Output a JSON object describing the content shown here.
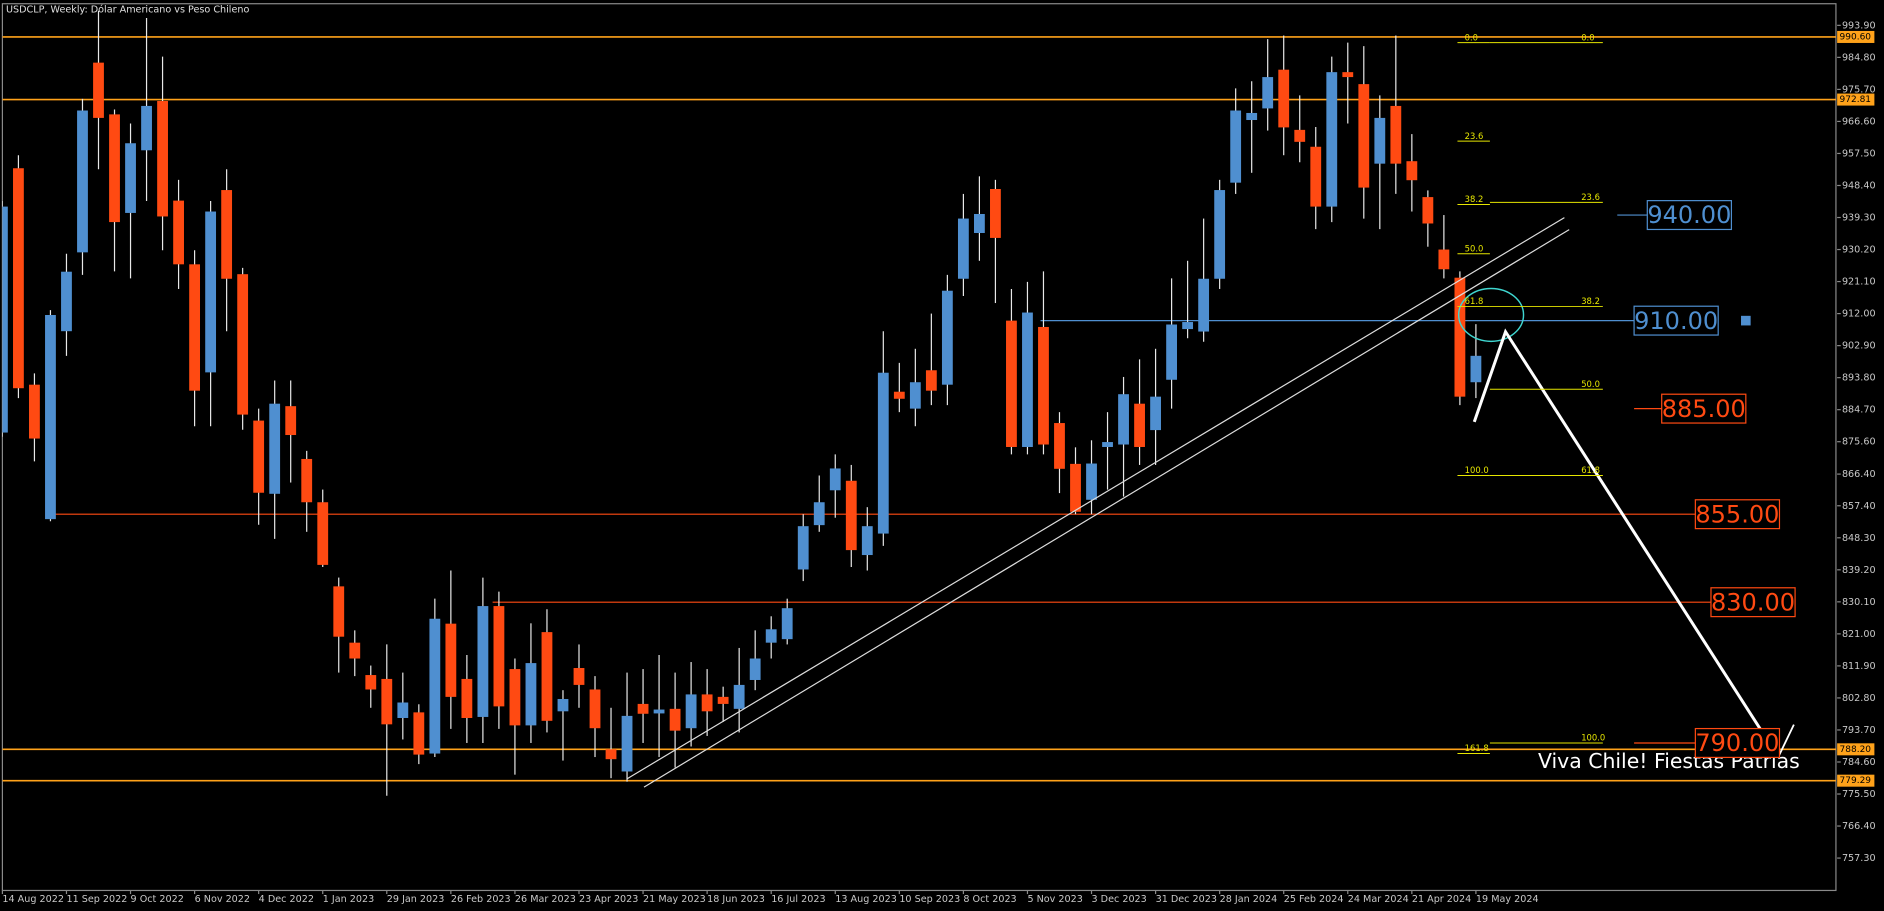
{
  "chart_data": {
    "type": "candlestick",
    "title": "USDCLP, Weekly:  Dólar Americano vs Peso Chileno",
    "categories": [
      "14 Aug 2022",
      null,
      null,
      null,
      "11 Sep 2022",
      null,
      null,
      null,
      "9 Oct 2022",
      null,
      null,
      null,
      "6 Nov 2022",
      null,
      null,
      null,
      "4 Dec 2022",
      null,
      null,
      null,
      "1 Jan 2023",
      null,
      null,
      null,
      "29 Jan 2023",
      null,
      null,
      null,
      "26 Feb 2023",
      null,
      null,
      null,
      "26 Mar 2023",
      null,
      null,
      null,
      "23 Apr 2023",
      null,
      null,
      null,
      "21 May 2023",
      null,
      null,
      null,
      "18 Jun 2023",
      null,
      null,
      null,
      "16 Jul 2023",
      null,
      null,
      null,
      "13 Aug 2023",
      null,
      null,
      null,
      "10 Sep 2023",
      null,
      null,
      null,
      "8 Oct 2023",
      null,
      null,
      null,
      "5 Nov 2023",
      null,
      null,
      null,
      "3 Dec 2023",
      null,
      null,
      null,
      "31 Dec 2023",
      null,
      null,
      null,
      "28 Jan 2024",
      null,
      null,
      null,
      "25 Feb 2024",
      null,
      null,
      null,
      "24 Mar 2024",
      null,
      null,
      null,
      "21 Apr 2024",
      null,
      null,
      null,
      "19 May 2024"
    ],
    "open": [
      878.2,
      953.3,
      891.8,
      853.6,
      907,
      929.4,
      983.3,
      968.6,
      940.6,
      958.4,
      972.4,
      944.1,
      926,
      895.3,
      947.1,
      923.2,
      881.6,
      860.8,
      885.7,
      870.7,
      858.4,
      834.5,
      818.5,
      809.3,
      808.2,
      797.1,
      798.7,
      787,
      823.9,
      808.2,
      797.4,
      828.9,
      811,
      795,
      821.5,
      799,
      811.3,
      805.2,
      788.2,
      781.9,
      801.1,
      798.4,
      799.7,
      794.2,
      803.8,
      803.1,
      799.7,
      807.9,
      818.5,
      819.5,
      839.3,
      851.9,
      861.8,
      864.5,
      843.4,
      849.5,
      889.8,
      885,
      895.9,
      891.8,
      921.9,
      934.9,
      947.4,
      910,
      874.1,
      908.2,
      880.9,
      869.3,
      859.1,
      874.1,
      874.8,
      886.4,
      878.9,
      893.2,
      907.6,
      906.9,
      921.9,
      949.2,
      967,
      970.3,
      981.3,
      964.2,
      959.4,
      942.4,
      980.6,
      977.2,
      954.6,
      971,
      955.3,
      945.1,
      930.2,
      922.2,
      892.5
    ],
    "high": [
      944,
      957,
      895,
      913,
      929,
      973,
      998,
      970,
      966,
      996,
      985,
      950,
      930,
      944,
      953,
      925,
      885,
      893,
      893,
      873,
      862,
      837,
      822,
      812,
      818,
      810,
      801,
      831,
      839,
      815,
      837,
      833,
      814,
      824,
      828,
      805,
      818,
      809,
      800,
      810,
      811,
      815,
      810,
      813,
      811,
      806,
      817,
      822,
      826,
      831,
      855,
      866,
      872,
      869,
      857,
      907,
      898,
      902,
      912,
      923,
      946,
      951,
      950,
      919,
      921,
      924,
      884,
      874,
      876,
      884,
      894,
      899,
      902,
      922,
      927,
      939,
      950,
      976,
      978,
      990,
      991,
      974,
      965,
      985,
      989,
      988,
      974,
      991,
      963,
      947,
      940,
      924,
      909
    ],
    "low": [
      877,
      888,
      870,
      853,
      900,
      923,
      953,
      924,
      922,
      944,
      930,
      919,
      880,
      880,
      907,
      879,
      852,
      848,
      864,
      850,
      840,
      810,
      809,
      800,
      775,
      791,
      784,
      786,
      794,
      790,
      790,
      794,
      781,
      790,
      793,
      785,
      800,
      786,
      780,
      779,
      790,
      786,
      783,
      789,
      792,
      796,
      793,
      805,
      814,
      818,
      836,
      850,
      854,
      840,
      839,
      846,
      884,
      880,
      886,
      886,
      917,
      927,
      915,
      872,
      872,
      872,
      861,
      855,
      855,
      862,
      860,
      869,
      869,
      885,
      905,
      904,
      919,
      946,
      952,
      964,
      957,
      955,
      936,
      938,
      966,
      939,
      936,
      946,
      941,
      931,
      922,
      886,
      888
    ],
    "close": [
      942.4,
      890.8,
      876.5,
      911.6,
      923.9,
      969.7,
      967.6,
      938,
      960.4,
      971,
      939.6,
      926,
      890.1,
      941,
      921.9,
      883.3,
      861.1,
      886.4,
      877.5,
      858.4,
      840.6,
      820.2,
      814,
      805.2,
      795.3,
      801.5,
      786.7,
      825.3,
      803.1,
      797.1,
      828.9,
      800.4,
      795,
      812.7,
      796.3,
      802.5,
      806.5,
      794.2,
      785.4,
      797.7,
      798.3,
      799.5,
      793.5,
      803.8,
      799,
      801.1,
      806.5,
      814,
      822.3,
      828.3,
      851.6,
      858.4,
      868,
      844.8,
      851.6,
      895.2,
      887.8,
      892.5,
      890.1,
      918.5,
      939,
      940.3,
      933.5,
      874.1,
      912.3,
      874.8,
      867.9,
      855.7,
      869.4,
      875.5,
      889.1,
      874.1,
      888.4,
      908.9,
      909.6,
      921.9,
      947.1,
      969.7,
      969,
      979.2,
      964.9,
      960.8,
      942.4,
      980.6,
      979.2,
      947.8,
      967.6,
      954.6,
      949.9,
      937.6,
      924.6,
      888.4,
      900
    ],
    "up_color": "#4f8fd0",
    "down_color": "#ff4a12",
    "wick_color": "#e8e8e8",
    "ylim": [
      748.1,
      999.7
    ],
    "yticks": [
      {
        "value": 993.9,
        "label": "993.90"
      },
      {
        "value": 984.8,
        "label": "984.80"
      },
      {
        "value": 975.7,
        "label": "975.70"
      },
      {
        "value": 966.6,
        "label": "966.60"
      },
      {
        "value": 957.5,
        "label": "957.50"
      },
      {
        "value": 948.4,
        "label": "948.40"
      },
      {
        "value": 939.3,
        "label": "939.30"
      },
      {
        "value": 930.2,
        "label": "930.20"
      },
      {
        "value": 921.1,
        "label": "921.10"
      },
      {
        "value": 912,
        "label": "912.00"
      },
      {
        "value": 902.9,
        "label": "902.90"
      },
      {
        "value": 893.8,
        "label": "893.80"
      },
      {
        "value": 884.7,
        "label": "884.70"
      },
      {
        "value": 875.6,
        "label": "875.60"
      },
      {
        "value": 866.4,
        "label": "866.40"
      },
      {
        "value": 857.4,
        "label": "857.40"
      },
      {
        "value": 848.3,
        "label": "848.30"
      },
      {
        "value": 839.2,
        "label": "839.20"
      },
      {
        "value": 830.1,
        "label": "830.10"
      },
      {
        "value": 821,
        "label": "821.00"
      },
      {
        "value": 811.9,
        "label": "811.90"
      },
      {
        "value": 802.8,
        "label": "802.80"
      },
      {
        "value": 793.7,
        "label": "793.70"
      },
      {
        "value": 784.6,
        "label": "784.60"
      },
      {
        "value": 775.5,
        "label": "775.50"
      },
      {
        "value": 766.4,
        "label": "766.40"
      },
      {
        "value": 757.3,
        "label": "757.30"
      }
    ],
    "level_lines": [
      {
        "value": 990.6,
        "label": "990.60"
      },
      {
        "value": 972.81,
        "label": "972.81"
      },
      {
        "value": 788.2,
        "label": "788.20"
      },
      {
        "value": 779.29,
        "label": "779.29"
      }
    ],
    "level_color": "#ffa21a",
    "targets": [
      {
        "value": 940,
        "label": "940.00",
        "color": "#4f8fd0"
      },
      {
        "value": 910,
        "label": "910.00",
        "color": "#4f8fd0"
      },
      {
        "value": 885,
        "label": "885.00",
        "color": "#ff4a12"
      },
      {
        "value": 855,
        "label": "855.00",
        "color": "#ff4a12"
      },
      {
        "value": 830,
        "label": "830.00",
        "color": "#ff4a12"
      },
      {
        "value": 790,
        "label": "790.00",
        "color": "#ff4a12"
      }
    ],
    "fib_a": {
      "levels": [
        {
          "value": 0,
          "label": "0.0"
        },
        23.6,
        38.2,
        {
          "value": 50,
          "label": "50.0"
        },
        61.8,
        {
          "value": 100,
          "label": "100.0"
        },
        161.8
      ],
      "prices": [
        989,
        961,
        943,
        929,
        914,
        866,
        787
      ]
    },
    "fib_b": {
      "levels": [
        {
          "value": 0,
          "label": "0.0"
        },
        23.6,
        38.2,
        {
          "value": 50,
          "label": "50.0"
        },
        61.8,
        {
          "value": 100,
          "label": "100.0"
        }
      ],
      "prices": [
        989,
        943.6,
        914,
        890.5,
        866,
        790
      ]
    },
    "fib_color": "#e6e600",
    "annotation": "Viva Chile! Fiestas Patrias"
  }
}
